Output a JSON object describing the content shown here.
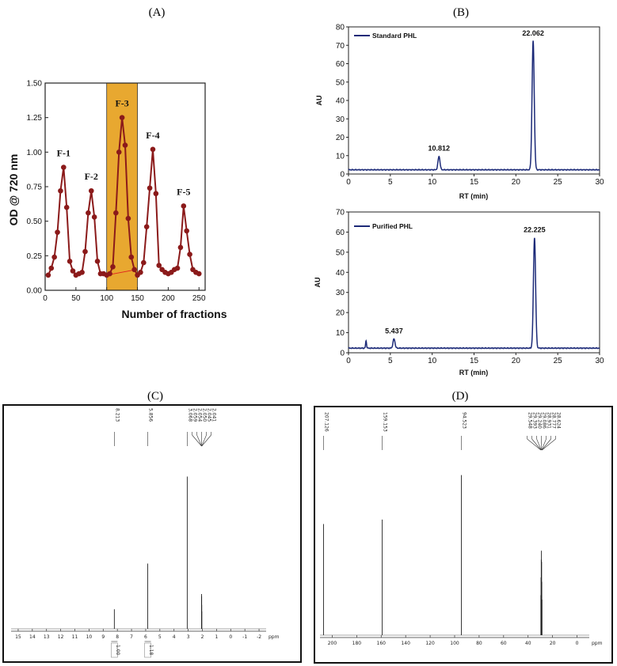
{
  "panels": {
    "a_label": "(A)",
    "b_label": "(B)",
    "c_label": "(C)",
    "d_label": "(D)"
  },
  "chart_data": [
    {
      "id": "A",
      "type": "line",
      "xlabel": "Number of fractions",
      "ylabel": "OD @ 720 nm",
      "xlim": [
        0,
        260
      ],
      "ylim": [
        0,
        1.5
      ],
      "xticks": [
        "0",
        "50",
        "100",
        "150",
        "200",
        "250"
      ],
      "yticks": [
        "0.00",
        "0.25",
        "0.50",
        "0.75",
        "1.00",
        "1.25",
        "1.50"
      ],
      "color": "#8b1a1a",
      "highlight": {
        "x_from": 100,
        "x_to": 150,
        "color": "#e8a830"
      },
      "x": [
        5,
        10,
        15,
        20,
        25,
        30,
        35,
        40,
        45,
        50,
        55,
        60,
        65,
        70,
        75,
        80,
        85,
        90,
        95,
        100,
        105,
        110,
        115,
        120,
        125,
        130,
        135,
        140,
        145,
        150,
        155,
        160,
        165,
        170,
        175,
        180,
        185,
        190,
        195,
        200,
        205,
        210,
        215,
        220,
        225,
        230,
        235,
        240,
        245,
        250
      ],
      "y": [
        0.11,
        0.16,
        0.24,
        0.42,
        0.72,
        0.89,
        0.6,
        0.21,
        0.14,
        0.11,
        0.12,
        0.13,
        0.28,
        0.56,
        0.72,
        0.53,
        0.21,
        0.12,
        0.12,
        0.11,
        0.12,
        0.17,
        0.56,
        1.0,
        1.25,
        1.05,
        0.52,
        0.24,
        0.15,
        0.11,
        0.13,
        0.2,
        0.46,
        0.74,
        1.02,
        0.7,
        0.18,
        0.15,
        0.13,
        0.12,
        0.13,
        0.15,
        0.16,
        0.31,
        0.61,
        0.43,
        0.26,
        0.15,
        0.13,
        0.12
      ],
      "annotations": [
        {
          "text": "F-1",
          "x": 30,
          "y": 0.89
        },
        {
          "text": "F-2",
          "x": 75,
          "y": 0.72
        },
        {
          "text": "F-3",
          "x": 125,
          "y": 1.25
        },
        {
          "text": "F-4",
          "x": 175,
          "y": 1.02
        },
        {
          "text": "F-5",
          "x": 225,
          "y": 0.61
        }
      ]
    },
    {
      "id": "B-top",
      "type": "line",
      "legend": "Standard PHL",
      "xlabel": "RT (min)",
      "ylabel": "AU",
      "xlim": [
        0,
        30
      ],
      "ylim": [
        0,
        80
      ],
      "xticks": [
        "0",
        "5",
        "10",
        "15",
        "20",
        "25",
        "30"
      ],
      "yticks": [
        "0",
        "10",
        "20",
        "30",
        "40",
        "50",
        "60",
        "70",
        "80"
      ],
      "color": "#1c2a78",
      "baseline": 2.3,
      "peaks": [
        {
          "label": "10.812",
          "rt": 10.812,
          "height": 7.3,
          "width": 0.12
        },
        {
          "label": "22.062",
          "rt": 22.062,
          "height": 70,
          "width": 0.13
        }
      ]
    },
    {
      "id": "B-bottom",
      "type": "line",
      "legend": "Purified PHL",
      "xlabel": "RT (min)",
      "ylabel": "AU",
      "xlim": [
        0,
        30
      ],
      "ylim": [
        0,
        70
      ],
      "xticks": [
        "0",
        "5",
        "10",
        "15",
        "20",
        "25",
        "30"
      ],
      "yticks": [
        "0",
        "10",
        "20",
        "30",
        "40",
        "50",
        "60",
        "70"
      ],
      "color": "#1c2a78",
      "baseline": 2.3,
      "peaks": [
        {
          "label": "",
          "rt": 2.1,
          "height": 3.6,
          "width": 0.06
        },
        {
          "label": "5.437",
          "rt": 5.437,
          "height": 4.6,
          "width": 0.12
        },
        {
          "label": "22.225",
          "rt": 22.225,
          "height": 55,
          "width": 0.13
        }
      ]
    },
    {
      "id": "C",
      "type": "line",
      "xunit": "ppm",
      "xlim": [
        15.5,
        -2.5
      ],
      "xticks": [
        "15",
        "14",
        "13",
        "12",
        "11",
        "10",
        "9",
        "8",
        "7",
        "6",
        "5",
        "4",
        "3",
        "2",
        "1",
        "0",
        "-1",
        "-2"
      ],
      "peaks": [
        {
          "label": "8.213",
          "ppm": 8.213,
          "height": 0.09
        },
        {
          "label": "5.856",
          "ppm": 5.856,
          "height": 0.3
        },
        {
          "label": "3.068",
          "ppm": 3.068,
          "height": 0.7
        },
        {
          "label": "2.059",
          "ppm": 2.059,
          "height": 0.16
        },
        {
          "label": "2.054",
          "ppm": 2.054,
          "height": 0.13
        },
        {
          "label": "2.050",
          "ppm": 2.05,
          "height": 0.15
        },
        {
          "label": "2.045",
          "ppm": 2.045,
          "height": 0.11
        },
        {
          "label": "2.041",
          "ppm": 2.041,
          "height": 0.08
        }
      ],
      "integrals": [
        {
          "label": "1.00",
          "ppm": 8.213
        },
        {
          "label": "1.18",
          "ppm": 5.856
        }
      ]
    },
    {
      "id": "D",
      "type": "line",
      "xunit": "ppm",
      "xlim": [
        210,
        -10
      ],
      "xticks": [
        "200",
        "180",
        "160",
        "140",
        "120",
        "100",
        "80",
        "60",
        "40",
        "20",
        "0"
      ],
      "peaks": [
        {
          "label": "207.126",
          "ppm": 207.126,
          "height": 0.5
        },
        {
          "label": "159.153",
          "ppm": 159.153,
          "height": 0.52
        },
        {
          "label": "94.523",
          "ppm": 94.523,
          "height": 0.72
        },
        {
          "label": "29.548",
          "ppm": 29.548,
          "height": 0.18
        },
        {
          "label": "29.393",
          "ppm": 29.393,
          "height": 0.26
        },
        {
          "label": "29.240",
          "ppm": 29.24,
          "height": 0.34
        },
        {
          "label": "29.086",
          "ppm": 29.086,
          "height": 0.38
        },
        {
          "label": "28.931",
          "ppm": 28.931,
          "height": 0.33
        },
        {
          "label": "28.777",
          "ppm": 28.777,
          "height": 0.24
        },
        {
          "label": "28.624",
          "ppm": 28.624,
          "height": 0.16
        }
      ]
    }
  ]
}
